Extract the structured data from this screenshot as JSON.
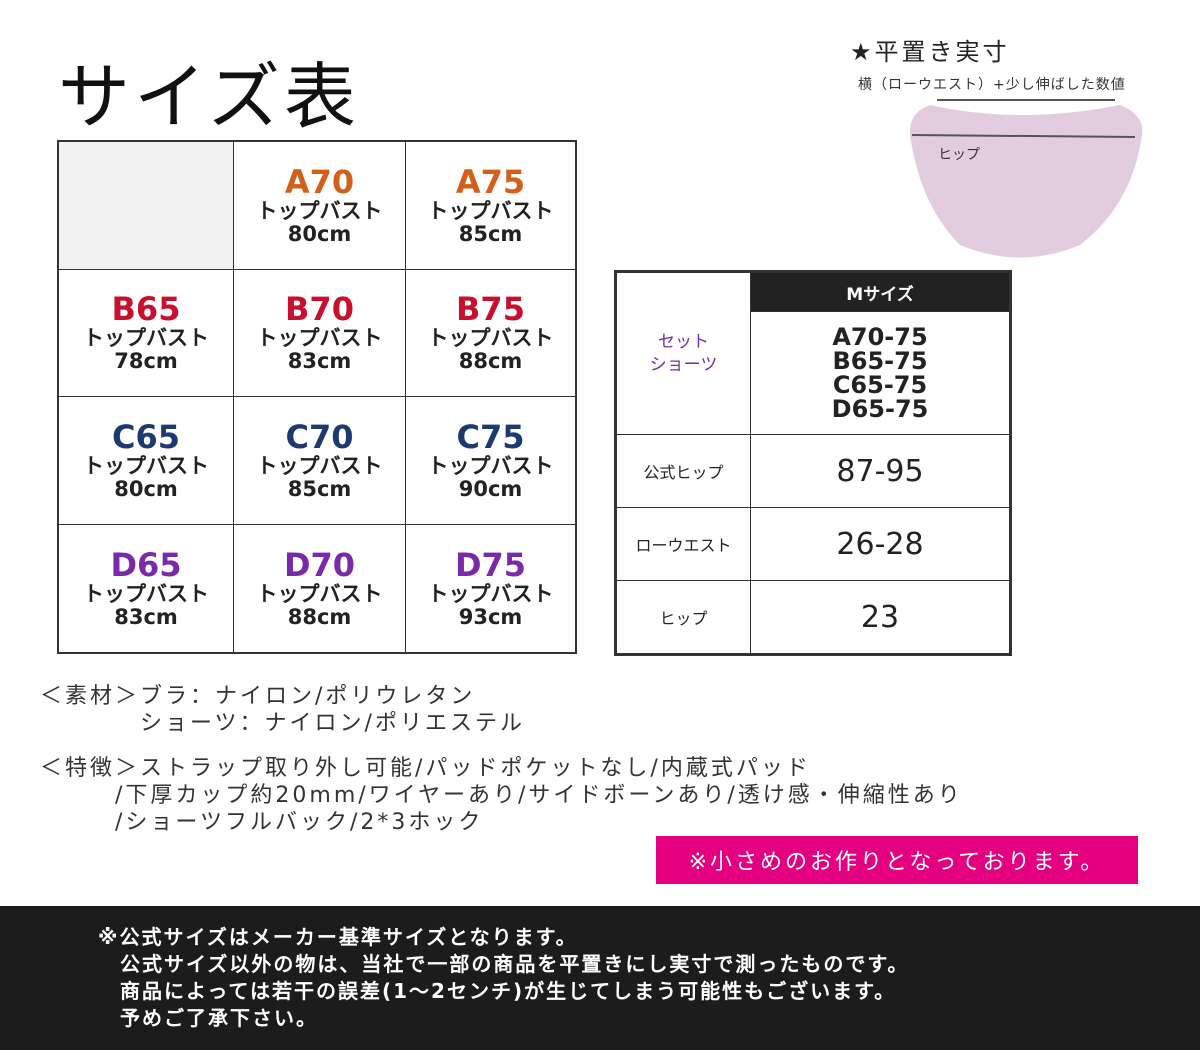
{
  "title": "サイズ表",
  "colors": {
    "A": "#d2601a",
    "B": "#c8102e",
    "C": "#1d3a6e",
    "D": "#7a2aa8",
    "banner": "#e4007f",
    "footer": "#1c1c1c",
    "set_label": "#7a2aa8"
  },
  "grid": [
    {
      "code": "",
      "label": "",
      "value": ""
    },
    {
      "code": "A70",
      "label": "トップバスト",
      "value": "80cm",
      "cup": "A"
    },
    {
      "code": "A75",
      "label": "トップバスト",
      "value": "85cm",
      "cup": "A"
    },
    {
      "code": "B65",
      "label": "トップバスト",
      "value": "78cm",
      "cup": "B"
    },
    {
      "code": "B70",
      "label": "トップバスト",
      "value": "83cm",
      "cup": "B"
    },
    {
      "code": "B75",
      "label": "トップバスト",
      "value": "88cm",
      "cup": "B"
    },
    {
      "code": "C65",
      "label": "トップバスト",
      "value": "80cm",
      "cup": "C"
    },
    {
      "code": "C70",
      "label": "トップバスト",
      "value": "85cm",
      "cup": "C"
    },
    {
      "code": "C75",
      "label": "トップバスト",
      "value": "90cm",
      "cup": "C"
    },
    {
      "code": "D65",
      "label": "トップバスト",
      "value": "83cm",
      "cup": "D"
    },
    {
      "code": "D70",
      "label": "トップバスト",
      "value": "88cm",
      "cup": "D"
    },
    {
      "code": "D75",
      "label": "トップバスト",
      "value": "93cm",
      "cup": "D"
    }
  ],
  "measure_table": {
    "header": "Mサイズ",
    "set_label": [
      "セット",
      "ショーツ"
    ],
    "sizes": [
      "A70-75",
      "B65-75",
      "C65-75",
      "D65-75"
    ],
    "rows": [
      {
        "key": "公式ヒップ",
        "value": "87-95"
      },
      {
        "key": "ローウエスト",
        "value": "26-28"
      },
      {
        "key": "ヒップ",
        "value": "23"
      }
    ]
  },
  "diagram": {
    "title": "★平置き実寸",
    "subtitle": "横（ローウエスト）+少し伸ばした数値",
    "hip_label": "ヒップ"
  },
  "notes": {
    "material": [
      "＜素材＞ブラ：ナイロン/ポリウレタン",
      "　　　　ショーツ：ナイロン/ポリエステル"
    ],
    "features": [
      "＜特徴＞ストラップ取り外し可能/パッドポケットなし/内蔵式パッド",
      "　　　/下厚カップ約20mm/ワイヤーあり/サイドボーンあり/透け感・伸縮性あり",
      "　　　/ショーツフルバック/2*3ホック"
    ]
  },
  "banner": "※小さめのお作りとなっております。",
  "footer": [
    "※公式サイズはメーカー基準サイズとなります。",
    "　公式サイズ以外の物は、当社で一部の商品を平置きにし実寸で測ったものです。",
    "　商品によっては若干の誤差(1～2センチ)が生じてしまう可能性もございます。",
    "　予めご了承下さい。"
  ]
}
